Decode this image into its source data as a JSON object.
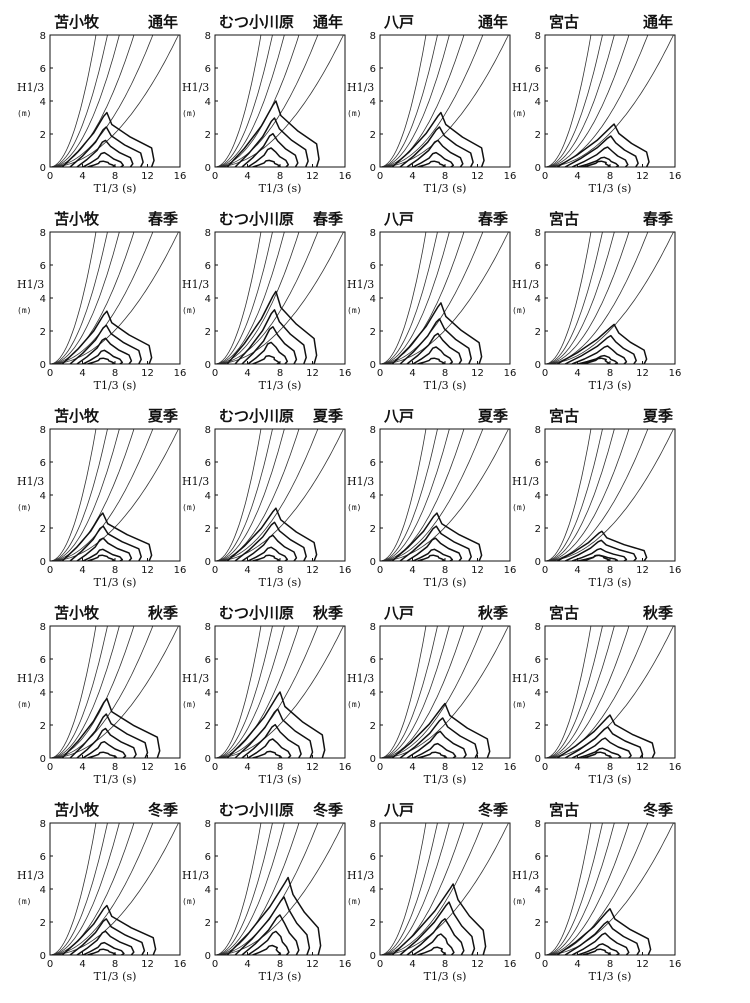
{
  "stations": [
    "苫小牧",
    "むつ小川原",
    "八戸",
    "宮古"
  ],
  "seasons": [
    "通年",
    "春季",
    "夏季",
    "秋季",
    "冬季"
  ],
  "axis": {
    "x_label": "T1/3 (s)",
    "y_label": "H1/3",
    "y_unit": "(m)",
    "x_ticks": [
      "0",
      "4",
      "8",
      "12",
      "16"
    ],
    "y_ticks": [
      "0",
      "2",
      "4",
      "6",
      "8"
    ]
  },
  "chart_data": {
    "type": "contour",
    "grid": {
      "rows": "seasons",
      "columns": "stations"
    },
    "xlabel": "T1/3 (s)",
    "ylabel": "H1/3 (m)",
    "xlim": [
      0,
      16
    ],
    "ylim": [
      0,
      8
    ],
    "steepness_curve_count": 6,
    "panels": [
      [
        {
          "station": "苫小牧",
          "season": "通年",
          "peak": [
            7,
            3.3
          ],
          "extent_T": [
            1.5,
            12.8
          ]
        },
        {
          "station": "むつ小川原",
          "season": "通年",
          "peak": [
            7.5,
            4.0
          ],
          "extent_T": [
            1.5,
            12.8
          ]
        },
        {
          "station": "八戸",
          "season": "通年",
          "peak": [
            7.5,
            3.3
          ],
          "extent_T": [
            1.5,
            12.8
          ]
        },
        {
          "station": "宮古",
          "season": "通年",
          "peak": [
            8.5,
            2.6
          ],
          "extent_T": [
            1.5,
            12.8
          ]
        }
      ],
      [
        {
          "station": "苫小牧",
          "season": "春季",
          "peak": [
            7,
            3.2
          ],
          "extent_T": [
            1.5,
            12.5
          ]
        },
        {
          "station": "むつ小川原",
          "season": "春季",
          "peak": [
            7.5,
            4.4
          ],
          "extent_T": [
            1.5,
            12.5
          ]
        },
        {
          "station": "八戸",
          "season": "春季",
          "peak": [
            7.5,
            3.7
          ],
          "extent_T": [
            1.5,
            12.5
          ]
        },
        {
          "station": "宮古",
          "season": "春季",
          "peak": [
            8.5,
            2.4
          ],
          "extent_T": [
            1.5,
            12.5
          ]
        }
      ],
      [
        {
          "station": "苫小牧",
          "season": "夏季",
          "peak": [
            6.5,
            2.9
          ],
          "extent_T": [
            1.5,
            12.5
          ]
        },
        {
          "station": "むつ小川原",
          "season": "夏季",
          "peak": [
            7.5,
            3.2
          ],
          "extent_T": [
            1.5,
            12.5
          ]
        },
        {
          "station": "八戸",
          "season": "夏季",
          "peak": [
            7,
            2.9
          ],
          "extent_T": [
            1.5,
            12.5
          ]
        },
        {
          "station": "宮古",
          "season": "夏季",
          "peak": [
            7,
            1.8
          ],
          "extent_T": [
            1.5,
            12.5
          ]
        }
      ],
      [
        {
          "station": "苫小牧",
          "season": "秋季",
          "peak": [
            7,
            3.6
          ],
          "extent_T": [
            1.5,
            13.5
          ]
        },
        {
          "station": "むつ小川原",
          "season": "秋季",
          "peak": [
            8,
            4.0
          ],
          "extent_T": [
            1.5,
            13.5
          ]
        },
        {
          "station": "八戸",
          "season": "秋季",
          "peak": [
            8,
            3.3
          ],
          "extent_T": [
            1.5,
            13.5
          ]
        },
        {
          "station": "宮古",
          "season": "秋季",
          "peak": [
            8,
            2.6
          ],
          "extent_T": [
            1.5,
            13.5
          ]
        }
      ],
      [
        {
          "station": "苫小牧",
          "season": "冬季",
          "peak": [
            7,
            3.0
          ],
          "extent_T": [
            1.5,
            13.0
          ]
        },
        {
          "station": "むつ小川原",
          "season": "冬季",
          "peak": [
            9,
            4.7
          ],
          "extent_T": [
            1.5,
            13.0
          ]
        },
        {
          "station": "八戸",
          "season": "冬季",
          "peak": [
            9,
            4.3
          ],
          "extent_T": [
            1.5,
            13.0
          ]
        },
        {
          "station": "宮古",
          "season": "冬季",
          "peak": [
            8,
            2.8
          ],
          "extent_T": [
            1.5,
            13.0
          ]
        }
      ]
    ]
  }
}
